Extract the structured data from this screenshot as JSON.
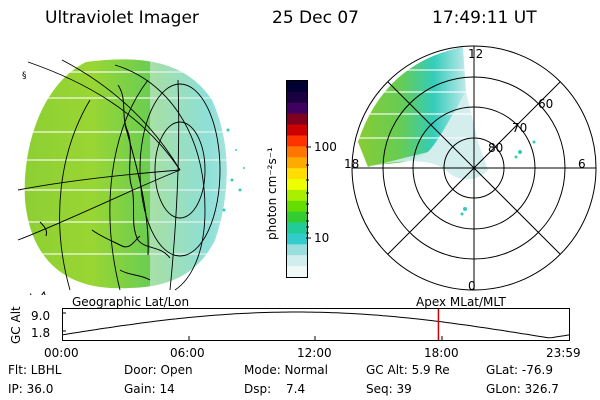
{
  "header": {
    "instrument": "Ultraviolet Imager",
    "date": "25 Dec 07",
    "time": "17:49:11 UT"
  },
  "colorbar": {
    "unit_label": "photon cm⁻²s⁻¹",
    "ticks": [
      "100",
      "10"
    ],
    "colors": [
      "#000033",
      "#1a0040",
      "#400060",
      "#800020",
      "#cc0000",
      "#ff3300",
      "#ff7700",
      "#ffaa00",
      "#ffdd00",
      "#eeff00",
      "#aaee00",
      "#66dd00",
      "#33cc33",
      "#22cc99",
      "#33cccc",
      "#99dddd",
      "#d0eeee",
      "#f0f8f8"
    ]
  },
  "left_map": {
    "label": "Geographic Lat/Lon"
  },
  "polar_plot": {
    "label": "Apex MLat/MLT",
    "mlt_labels": {
      "top": "12",
      "left": "18",
      "right": "6",
      "bottom": "0"
    },
    "lat_labels": [
      "60",
      "70",
      "80"
    ]
  },
  "timeline": {
    "axis_label": "GC Alt",
    "y_ticks": [
      "9.0",
      "1.8"
    ],
    "x_ticks": [
      "00:00",
      "06:00",
      "12:00",
      "18:00",
      "23:59"
    ],
    "current_time_fraction": 0.7425,
    "marker_color": "#cc0000"
  },
  "info": {
    "flt": "Flt: LBHL",
    "ip": "IP: 36.0",
    "door": "Door: Open",
    "gain": "Gain: 14",
    "mode": "Mode: Normal",
    "dsp_label": "Dsp:",
    "dsp_value": "7.4",
    "gc_alt": "GC Alt: 5.9 Re",
    "seq": "Seq: 39",
    "glat": "GLat: -76.9",
    "glon": "GLon: 326.7"
  }
}
